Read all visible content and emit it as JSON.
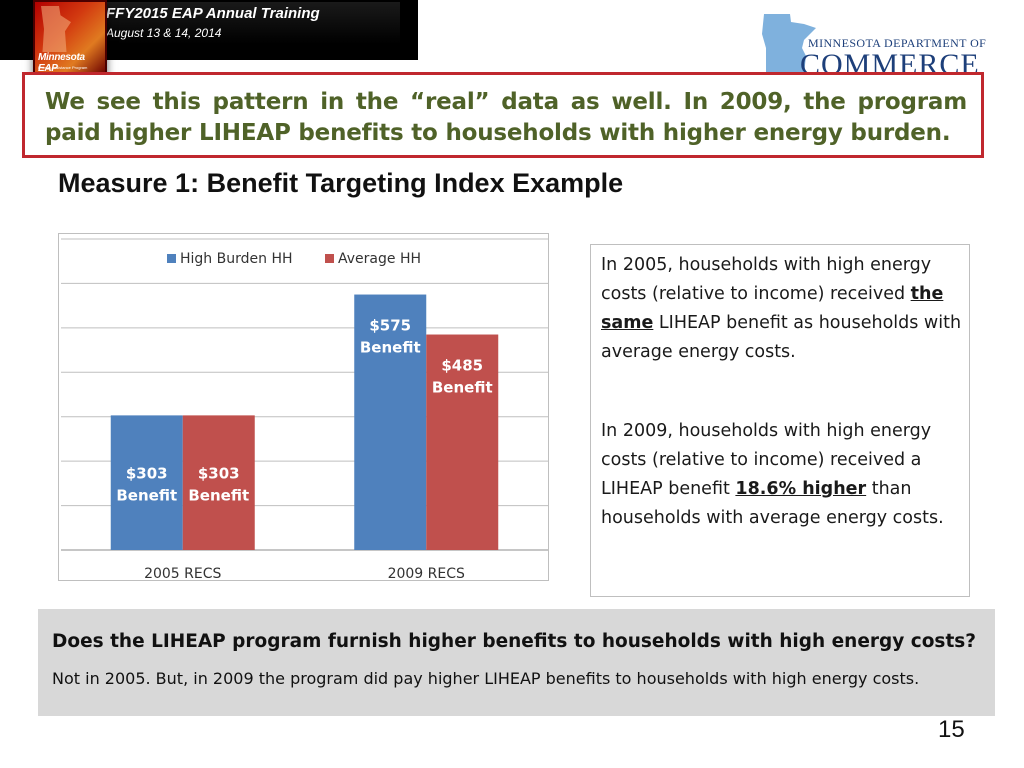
{
  "header": {
    "title": "FFY2015 EAP Annual Training",
    "date": "August 13 & 14, 2014",
    "eap_logo_text": "Minnesota EAP",
    "eap_logo_sub": "Energy Assistance Program",
    "commerce_line1": "MINNESOTA DEPARTMENT OF",
    "commerce_line2": "COMMERCE"
  },
  "callout": "We see this pattern in the “real” data as well.  In 2009, the program paid higher LIHEAP benefits to households with higher energy burden.",
  "measure_title": "Measure 1:  Benefit Targeting Index Example",
  "chart_data": {
    "type": "bar",
    "categories": [
      "2005 RECS",
      "2009 RECS"
    ],
    "series": [
      {
        "name": "High Burden HH",
        "color": "#4f81bd",
        "values": [
          303,
          575
        ],
        "labels": [
          "$303 Benefit",
          "$575 Benefit"
        ]
      },
      {
        "name": "Average HH",
        "color": "#c0504d",
        "values": [
          303,
          485
        ],
        "labels": [
          "$303 Benefit",
          "$485 Benefit"
        ]
      }
    ],
    "ylim": [
      0,
      700
    ],
    "grid": true,
    "legend": "top"
  },
  "explanation": {
    "p1_a": "In 2005, households with high energy costs (relative to income) received ",
    "p1_b": "the same",
    "p1_c": " LIHEAP benefit as households with average energy costs.",
    "p2_a": "In 2009, households with high energy costs (relative to income) received a LIHEAP benefit ",
    "p2_b": "18.6% higher",
    "p2_c": " than households with average energy costs."
  },
  "question": "Does the LIHEAP program furnish higher benefits to households with high energy costs?",
  "answer": "Not in 2005. But, in 2009 the program did pay higher LIHEAP benefits to households with high energy costs.",
  "page_number": "15"
}
